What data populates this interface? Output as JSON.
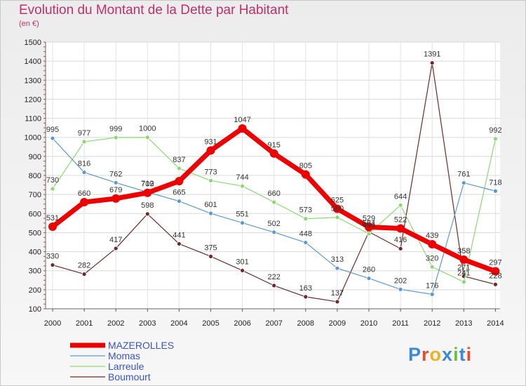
{
  "header": {
    "title": "Evolution du Montant de la Dette par Habitant",
    "subtitle": "(en €)"
  },
  "logo": {
    "text": "Proxiti",
    "colors": [
      "#3a8ad8",
      "#e84c2a",
      "#f0b020",
      "#3a8ad8",
      "#6abf3a",
      "#3a8ad8",
      "#e84c2a"
    ]
  },
  "chart_data": {
    "type": "line",
    "x": [
      "2000",
      "2001",
      "2002",
      "2003",
      "2004",
      "2005",
      "2006",
      "2007",
      "2008",
      "2009",
      "2010",
      "2011",
      "2012",
      "2013",
      "2014"
    ],
    "ylim": [
      100,
      1500
    ],
    "yticks": [
      100,
      200,
      300,
      400,
      500,
      600,
      700,
      800,
      900,
      1000,
      1100,
      1200,
      1300,
      1400,
      1500
    ],
    "grid": true,
    "legend_position": "bottom-left",
    "series": [
      {
        "name": "Boumourt",
        "color": "#6e2a2a",
        "width": 1.2,
        "marker": 3,
        "values": [
          330,
          282,
          417,
          598,
          441,
          375,
          301,
          222,
          163,
          137,
          504,
          416,
          1391,
          271,
          228
        ],
        "labels": [
          "330",
          "282",
          "417",
          "598",
          "441",
          "375",
          "301",
          "222",
          "163",
          "137",
          "504",
          "416",
          "1391",
          "271",
          "228"
        ]
      },
      {
        "name": "Larreule",
        "color": "#8cd870",
        "width": 1.2,
        "marker": 3,
        "values": [
          730,
          977,
          999,
          1000,
          837,
          773,
          744,
          660,
          573,
          580,
          494,
          644,
          320,
          241,
          992
        ],
        "labels": [
          "730",
          "977",
          "999",
          "1000",
          "837",
          "773",
          "744",
          "660",
          "573",
          "580",
          "494",
          "644",
          "320",
          "241",
          "992"
        ]
      },
      {
        "name": "Momas",
        "color": "#5a9ad0",
        "width": 1.2,
        "marker": 3,
        "values": [
          995,
          816,
          762,
          712,
          665,
          601,
          551,
          502,
          448,
          313,
          260,
          202,
          176,
          761,
          718
        ],
        "labels": [
          "995",
          "816",
          "762",
          "712",
          "665",
          "601",
          "551",
          "502",
          "448",
          "313",
          "260",
          "202",
          "176",
          "761",
          "718"
        ]
      },
      {
        "name": "MAZEROLLES",
        "color": "#ee0000",
        "width": 7,
        "marker": 6,
        "values": [
          531,
          660,
          679,
          709,
          770,
          931,
          1047,
          915,
          805,
          625,
          529,
          522,
          439,
          358,
          297
        ],
        "labels": [
          "531",
          "660",
          "679",
          "709",
          "",
          "931",
          "1047",
          "915",
          "805",
          "625",
          "529",
          "522",
          "439",
          "358",
          "297"
        ]
      }
    ],
    "legend": [
      "MAZEROLLES",
      "Momas",
      "Larreule",
      "Boumourt"
    ]
  }
}
